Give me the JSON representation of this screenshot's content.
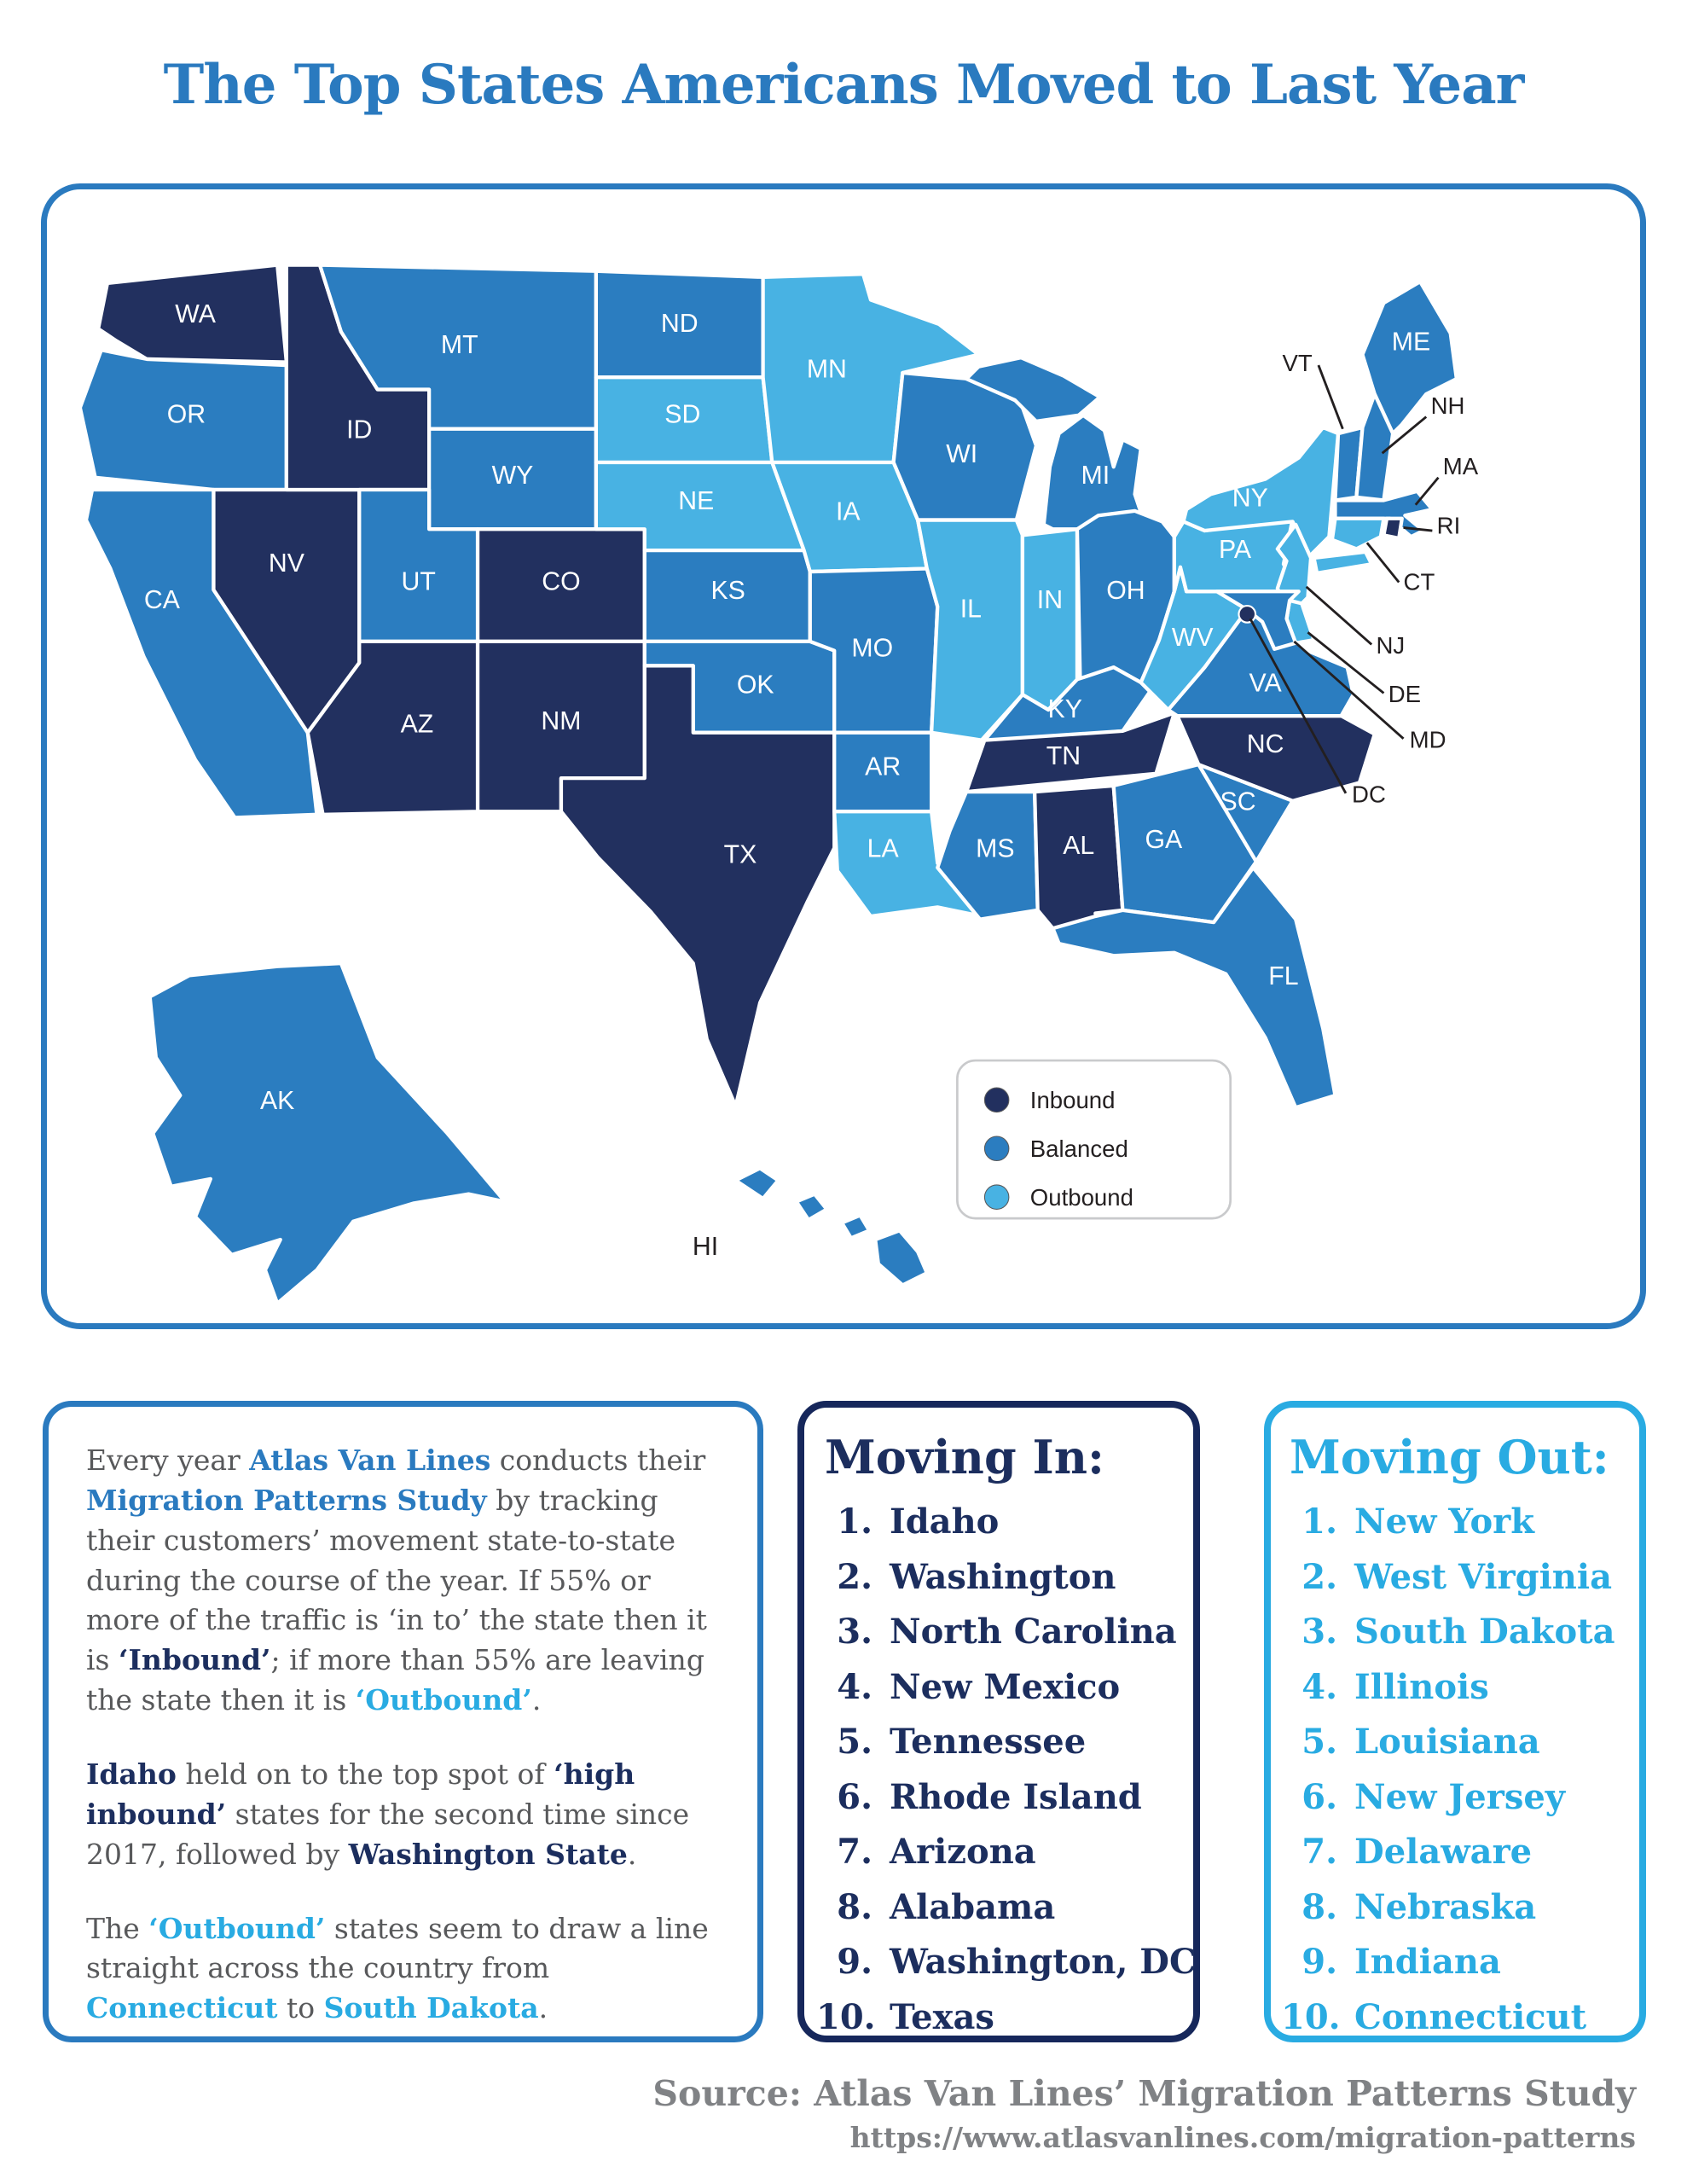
{
  "title": "The Top States Americans Moved to Last Year",
  "colors": {
    "inbound": "#22305f",
    "balanced": "#2b7dc0",
    "outbound": "#48b2e3",
    "accent_blue": "#2a7abf",
    "accent_cyan": "#29abe2",
    "navy_text": "#1c2e5e",
    "body_gray": "#58595b",
    "source_gray": "#808285"
  },
  "map": {
    "legend": [
      {
        "key": "inbound",
        "label": "Inbound"
      },
      {
        "key": "balanced",
        "label": "Balanced"
      },
      {
        "key": "outbound",
        "label": "Outbound"
      }
    ],
    "states": [
      {
        "id": "WA",
        "label": "WA",
        "category": "inbound"
      },
      {
        "id": "OR",
        "label": "OR",
        "category": "balanced"
      },
      {
        "id": "CA",
        "label": "CA",
        "category": "balanced"
      },
      {
        "id": "NV",
        "label": "NV",
        "category": "inbound"
      },
      {
        "id": "ID",
        "label": "ID",
        "category": "inbound"
      },
      {
        "id": "MT",
        "label": "MT",
        "category": "balanced"
      },
      {
        "id": "WY",
        "label": "WY",
        "category": "balanced"
      },
      {
        "id": "UT",
        "label": "UT",
        "category": "balanced"
      },
      {
        "id": "CO",
        "label": "CO",
        "category": "inbound"
      },
      {
        "id": "AZ",
        "label": "AZ",
        "category": "inbound"
      },
      {
        "id": "NM",
        "label": "NM",
        "category": "inbound"
      },
      {
        "id": "ND",
        "label": "ND",
        "category": "balanced"
      },
      {
        "id": "SD",
        "label": "SD",
        "category": "outbound"
      },
      {
        "id": "NE",
        "label": "NE",
        "category": "outbound"
      },
      {
        "id": "KS",
        "label": "KS",
        "category": "balanced"
      },
      {
        "id": "OK",
        "label": "OK",
        "category": "balanced"
      },
      {
        "id": "TX",
        "label": "TX",
        "category": "inbound"
      },
      {
        "id": "MN",
        "label": "MN",
        "category": "outbound"
      },
      {
        "id": "IA",
        "label": "IA",
        "category": "outbound"
      },
      {
        "id": "MO",
        "label": "MO",
        "category": "balanced"
      },
      {
        "id": "AR",
        "label": "AR",
        "category": "balanced"
      },
      {
        "id": "LA",
        "label": "LA",
        "category": "outbound"
      },
      {
        "id": "WI",
        "label": "WI",
        "category": "balanced"
      },
      {
        "id": "IL",
        "label": "IL",
        "category": "outbound"
      },
      {
        "id": "IN",
        "label": "IN",
        "category": "outbound"
      },
      {
        "id": "MI",
        "label": "MI",
        "category": "balanced"
      },
      {
        "id": "OH",
        "label": "OH",
        "category": "balanced"
      },
      {
        "id": "KY",
        "label": "KY",
        "category": "balanced"
      },
      {
        "id": "TN",
        "label": "TN",
        "category": "inbound"
      },
      {
        "id": "MS",
        "label": "MS",
        "category": "balanced"
      },
      {
        "id": "AL",
        "label": "AL",
        "category": "inbound"
      },
      {
        "id": "GA",
        "label": "GA",
        "category": "balanced"
      },
      {
        "id": "SC",
        "label": "SC",
        "category": "balanced"
      },
      {
        "id": "NC",
        "label": "NC",
        "category": "inbound"
      },
      {
        "id": "VA",
        "label": "VA",
        "category": "balanced"
      },
      {
        "id": "WV",
        "label": "WV",
        "category": "outbound"
      },
      {
        "id": "PA",
        "label": "PA",
        "category": "outbound"
      },
      {
        "id": "NY",
        "label": "NY",
        "category": "outbound"
      },
      {
        "id": "FL",
        "label": "FL",
        "category": "balanced"
      },
      {
        "id": "ME",
        "label": "ME",
        "category": "balanced"
      },
      {
        "id": "VT",
        "label": "VT",
        "category": "balanced",
        "callout": true
      },
      {
        "id": "NH",
        "label": "NH",
        "category": "balanced",
        "callout": true
      },
      {
        "id": "MA",
        "label": "MA",
        "category": "balanced",
        "callout": true
      },
      {
        "id": "RI",
        "label": "RI",
        "category": "inbound",
        "callout": true
      },
      {
        "id": "CT",
        "label": "CT",
        "category": "outbound",
        "callout": true
      },
      {
        "id": "NJ",
        "label": "NJ",
        "category": "outbound",
        "callout": true
      },
      {
        "id": "DE",
        "label": "DE",
        "category": "outbound",
        "callout": true
      },
      {
        "id": "MD",
        "label": "MD",
        "category": "balanced",
        "callout": true
      },
      {
        "id": "DC",
        "label": "DC",
        "category": "inbound",
        "callout": true,
        "shape": "dot"
      },
      {
        "id": "AK",
        "label": "AK",
        "category": "balanced"
      },
      {
        "id": "HI",
        "label": "HI",
        "category": "balanced",
        "label_style": "dark"
      }
    ]
  },
  "description": {
    "paragraphs": [
      [
        {
          "t": "Every year ",
          "s": "plain"
        },
        {
          "t": "Atlas Van Lines",
          "s": "blue"
        },
        {
          "t": " conducts their ",
          "s": "plain"
        },
        {
          "t": "Migration Patterns Study",
          "s": "blue"
        },
        {
          "t": " by tracking their customers’ movement state-to-state during the course of the year. If 55% or more of the traffic is ‘in to’ the state then it is ",
          "s": "plain"
        },
        {
          "t": "‘Inbound’",
          "s": "navy"
        },
        {
          "t": "; if more than 55% are leaving the state then it is ",
          "s": "plain"
        },
        {
          "t": "‘Outbound’",
          "s": "cyan"
        },
        {
          "t": ".",
          "s": "plain"
        }
      ],
      [
        {
          "t": "Idaho",
          "s": "navy"
        },
        {
          "t": " held on to the top spot of ",
          "s": "plain"
        },
        {
          "t": "‘high inbound’",
          "s": "navy"
        },
        {
          "t": " states for the second time since 2017, followed by ",
          "s": "plain"
        },
        {
          "t": "Washington State",
          "s": "navy"
        },
        {
          "t": ".",
          "s": "plain"
        }
      ],
      [
        {
          "t": "The ",
          "s": "plain"
        },
        {
          "t": "‘Outbound’",
          "s": "cyan"
        },
        {
          "t": " states seem to draw a line straight across the country from ",
          "s": "plain"
        },
        {
          "t": "Connecticut",
          "s": "cyan"
        },
        {
          "t": " to ",
          "s": "plain"
        },
        {
          "t": "South Dakota",
          "s": "cyan"
        },
        {
          "t": ".",
          "s": "plain"
        }
      ]
    ]
  },
  "moving_in": {
    "title": "Moving In:",
    "items": [
      "Idaho",
      "Washington",
      "North Carolina",
      "New Mexico",
      "Tennessee",
      "Rhode Island",
      "Arizona",
      "Alabama",
      "Washington, DC",
      "Texas"
    ]
  },
  "moving_out": {
    "title": "Moving Out:",
    "items": [
      "New York",
      "West Virginia",
      "South Dakota",
      "Illinois",
      "Louisiana",
      "New Jersey",
      "Delaware",
      "Nebraska",
      "Indiana",
      "Connecticut"
    ]
  },
  "source": {
    "line1": "Source: Atlas Van Lines’ Migration Patterns Study",
    "line2": "https://www.atlasvanlines.com/migration-patterns"
  },
  "chart_data": {
    "type": "heatmap",
    "title": "The Top States Americans Moved to Last Year",
    "legend_entries": [
      "Inbound",
      "Balanced",
      "Outbound"
    ],
    "inbound_states": [
      "WA",
      "ID",
      "NV",
      "AZ",
      "NM",
      "CO",
      "TX",
      "TN",
      "NC",
      "AL",
      "RI",
      "DC"
    ],
    "balanced_states": [
      "OR",
      "CA",
      "MT",
      "WY",
      "UT",
      "ND",
      "KS",
      "OK",
      "MO",
      "AR",
      "MS",
      "GA",
      "SC",
      "FL",
      "KY",
      "VA",
      "OH",
      "MI",
      "WI",
      "ME",
      "VT",
      "NH",
      "MA",
      "MD",
      "AK",
      "HI"
    ],
    "outbound_states": [
      "MN",
      "SD",
      "NE",
      "IA",
      "IL",
      "IN",
      "LA",
      "NY",
      "PA",
      "NJ",
      "CT",
      "DE",
      "WV"
    ],
    "moving_in_rank": [
      "Idaho",
      "Washington",
      "North Carolina",
      "New Mexico",
      "Tennessee",
      "Rhode Island",
      "Arizona",
      "Alabama",
      "Washington, DC",
      "Texas"
    ],
    "moving_out_rank": [
      "New York",
      "West Virginia",
      "South Dakota",
      "Illinois",
      "Louisiana",
      "New Jersey",
      "Delaware",
      "Nebraska",
      "Indiana",
      "Connecticut"
    ]
  }
}
